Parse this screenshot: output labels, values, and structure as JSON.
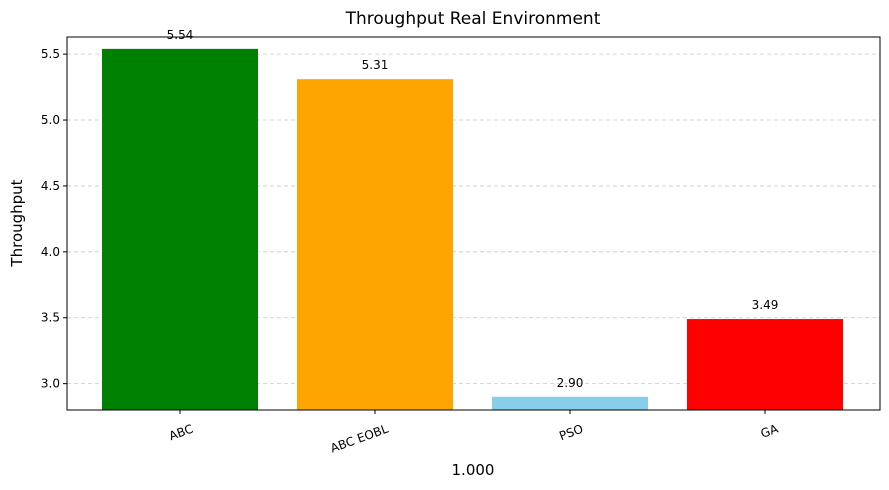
{
  "chart_data": {
    "type": "bar",
    "title": "Throughput Real Environment",
    "xlabel": "1.000",
    "ylabel": "Throughput",
    "categories": [
      "ABC",
      "ABC EOBL",
      "PSO",
      "GA"
    ],
    "values": [
      5.54,
      5.31,
      2.9,
      3.49
    ],
    "value_labels": [
      "5.54",
      "5.31",
      "2.90",
      "3.49"
    ],
    "colors": [
      "#008000",
      "#ffa500",
      "#87ceeb",
      "#ff0000"
    ],
    "ylim": [
      2.8,
      5.63
    ],
    "yticks": [
      3.0,
      3.5,
      4.0,
      4.5,
      5.0,
      5.5
    ],
    "ytick_labels": [
      "3.0",
      "3.5",
      "4.0",
      "4.5",
      "5.0",
      "5.5"
    ],
    "grid": "y-dashed"
  }
}
